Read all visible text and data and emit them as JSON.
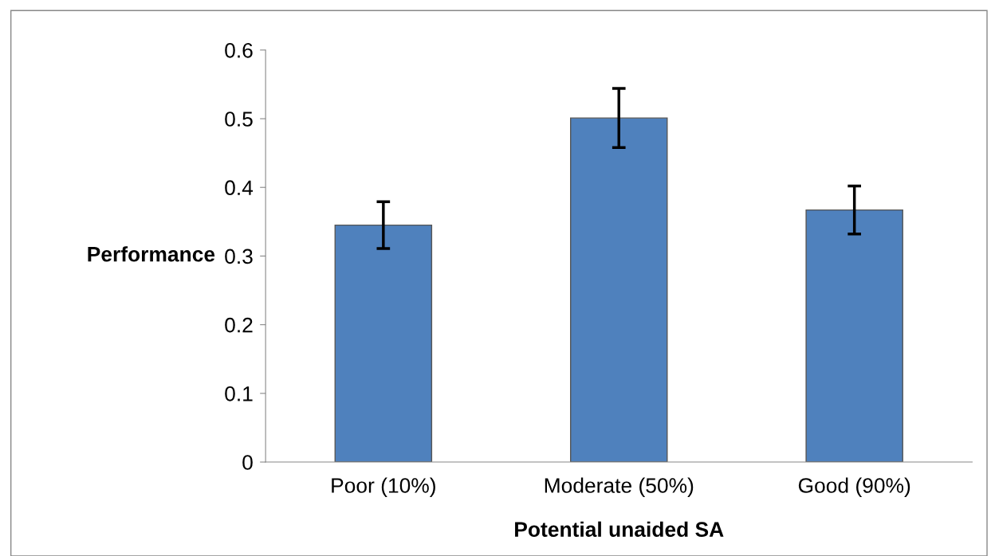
{
  "chart_data": {
    "type": "bar",
    "xlabel": "Potential unaided SA",
    "ylabel": "Performance",
    "categories": [
      "Poor (10%)",
      "Moderate (50%)",
      "Good (90%)"
    ],
    "values": [
      0.345,
      0.501,
      0.367
    ],
    "errors": [
      0.034,
      0.043,
      0.035
    ],
    "color": "#4f81bd",
    "ylim": [
      0,
      0.6
    ],
    "yticks": [
      {
        "value": 0,
        "label": "0"
      },
      0.1,
      0.2,
      0.3,
      0.4,
      0.5,
      0.6
    ],
    "grid": false
  }
}
